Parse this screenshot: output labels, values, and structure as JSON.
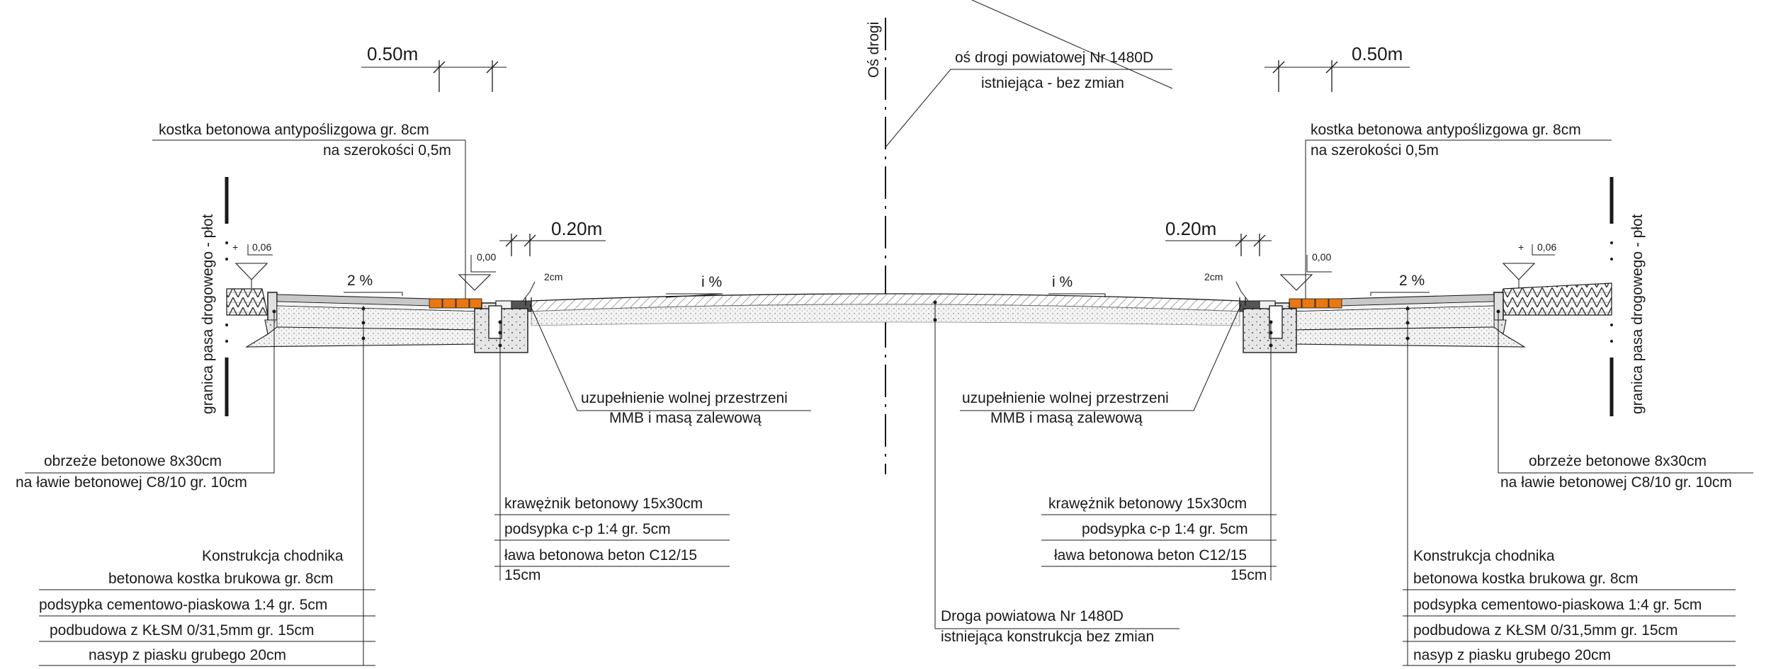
{
  "axis": {
    "label": "Oś drogi",
    "callout_1": "oś drogi powiatowej Nr 1480D",
    "callout_2": "istniejąca - bez zmian"
  },
  "dimensions": {
    "d050": "0.50m",
    "d020": "0.20m"
  },
  "slopes": {
    "sidewalk": "2 %",
    "road": "i %"
  },
  "levels": {
    "plus": "+",
    "high": "0,06",
    "zero": "0,00",
    "gap": "2cm"
  },
  "boundary": "granica pasa drogowego - płot",
  "antislip": {
    "line1": "kostka betonowa antypoślizgowa gr. 8cm",
    "line2": "na szerokości 0,5m"
  },
  "gap_fill": {
    "line1": "uzupełnienie wolnej przestrzeni",
    "line2": "MMB i masą zalewową"
  },
  "edging": {
    "line1": "obrzeże betonowe 8x30cm",
    "line2": "na ławie betonowej C8/10 gr. 10cm"
  },
  "curb": {
    "line1": "krawężnik betonowy 15x30cm",
    "line2": "podsypka c-p 1:4 gr. 5cm",
    "line3": "ława betonowa beton C12/15",
    "line4": "15cm"
  },
  "sidewalk": {
    "title": "Konstrukcja chodnika",
    "layer1": "betonowa kostka brukowa gr. 8cm",
    "layer2": "podsypka cementowo-piaskowa 1:4 gr. 5cm",
    "layer3": "podbudowa z KŁSM 0/31,5mm gr. 15cm",
    "layer4": "nasyp z piasku grubego 20cm"
  },
  "road": {
    "line1": "Droga powiatowa Nr 1480D",
    "line2": "istniejąca konstrukcja bez zmian"
  },
  "colors": {
    "line": "#1a1a1a",
    "paver": "#e8780f",
    "concrete": "#dcdcdc",
    "fill": "#f2f2f2"
  }
}
